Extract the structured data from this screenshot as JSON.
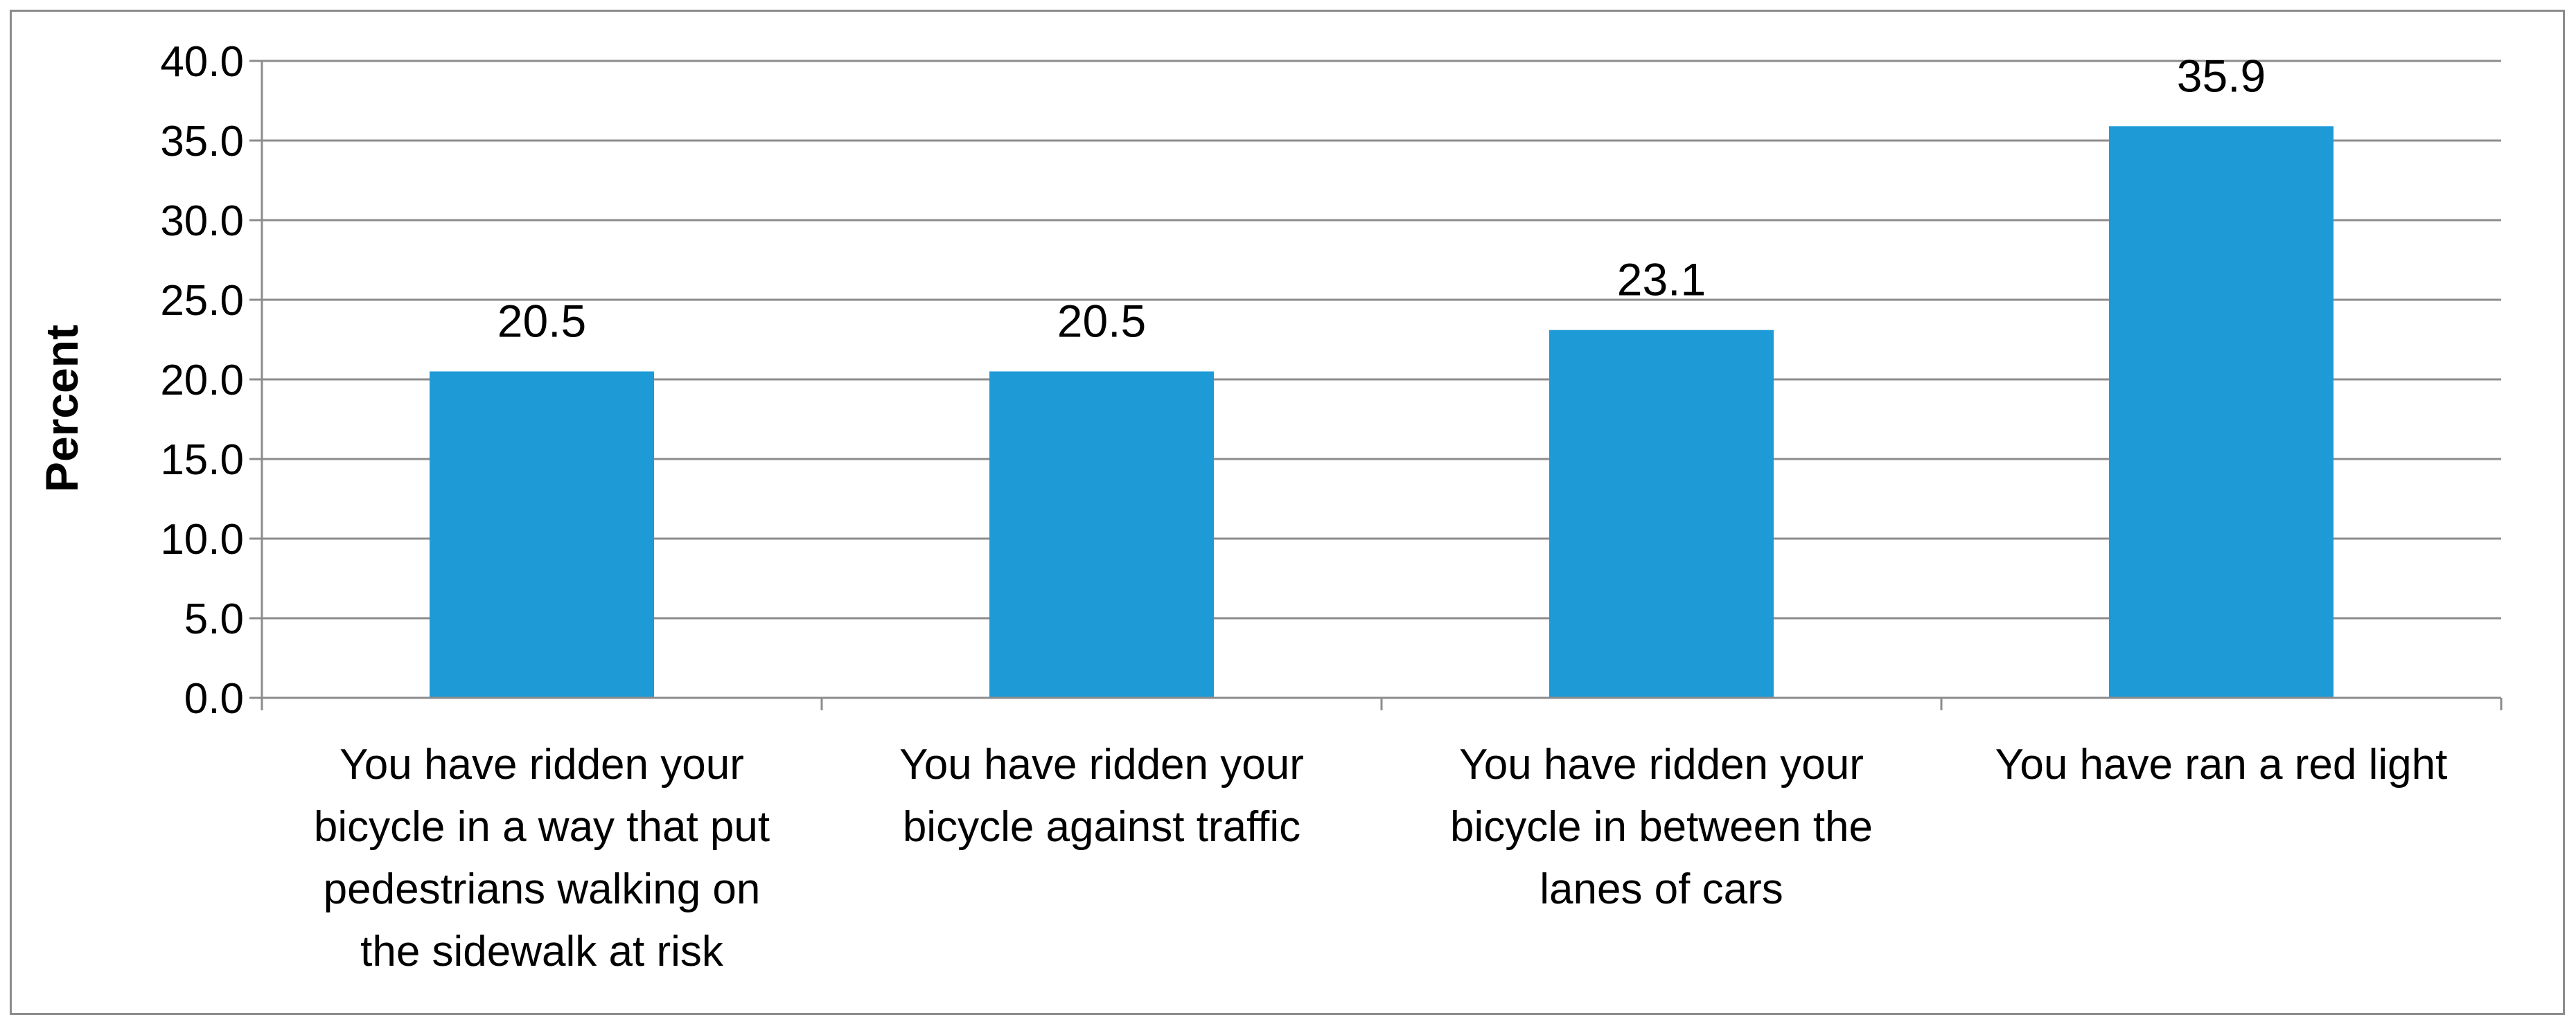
{
  "chart_data": {
    "type": "bar",
    "title": "",
    "xlabel": "",
    "ylabel": "Percent",
    "ylim": [
      0,
      40
    ],
    "ytick_step": 5,
    "ytick_labels": [
      "0.0",
      "5.0",
      "10.0",
      "15.0",
      "20.0",
      "25.0",
      "30.0",
      "35.0",
      "40.0"
    ],
    "grid": true,
    "legend": "none",
    "bar_color": "#1e9bd7",
    "categories": [
      "You have ridden your bicycle in a way that put pedestrians walking on the sidewalk at risk",
      "You have ridden your bicycle against traffic",
      "You have ridden your bicycle in between the lanes of cars",
      "You have ran a red light"
    ],
    "category_lines": [
      [
        "You have ridden your",
        "bicycle in a way that put",
        "pedestrians walking on",
        "the sidewalk at risk"
      ],
      [
        "You have ridden your",
        "bicycle against traffic"
      ],
      [
        "You have ridden your",
        "bicycle in between the",
        "lanes of cars"
      ],
      [
        "You have ran a red light"
      ]
    ],
    "values": [
      20.5,
      20.5,
      23.1,
      35.9
    ],
    "data_labels": [
      "20.5",
      "20.5",
      "23.1",
      "35.9"
    ]
  }
}
